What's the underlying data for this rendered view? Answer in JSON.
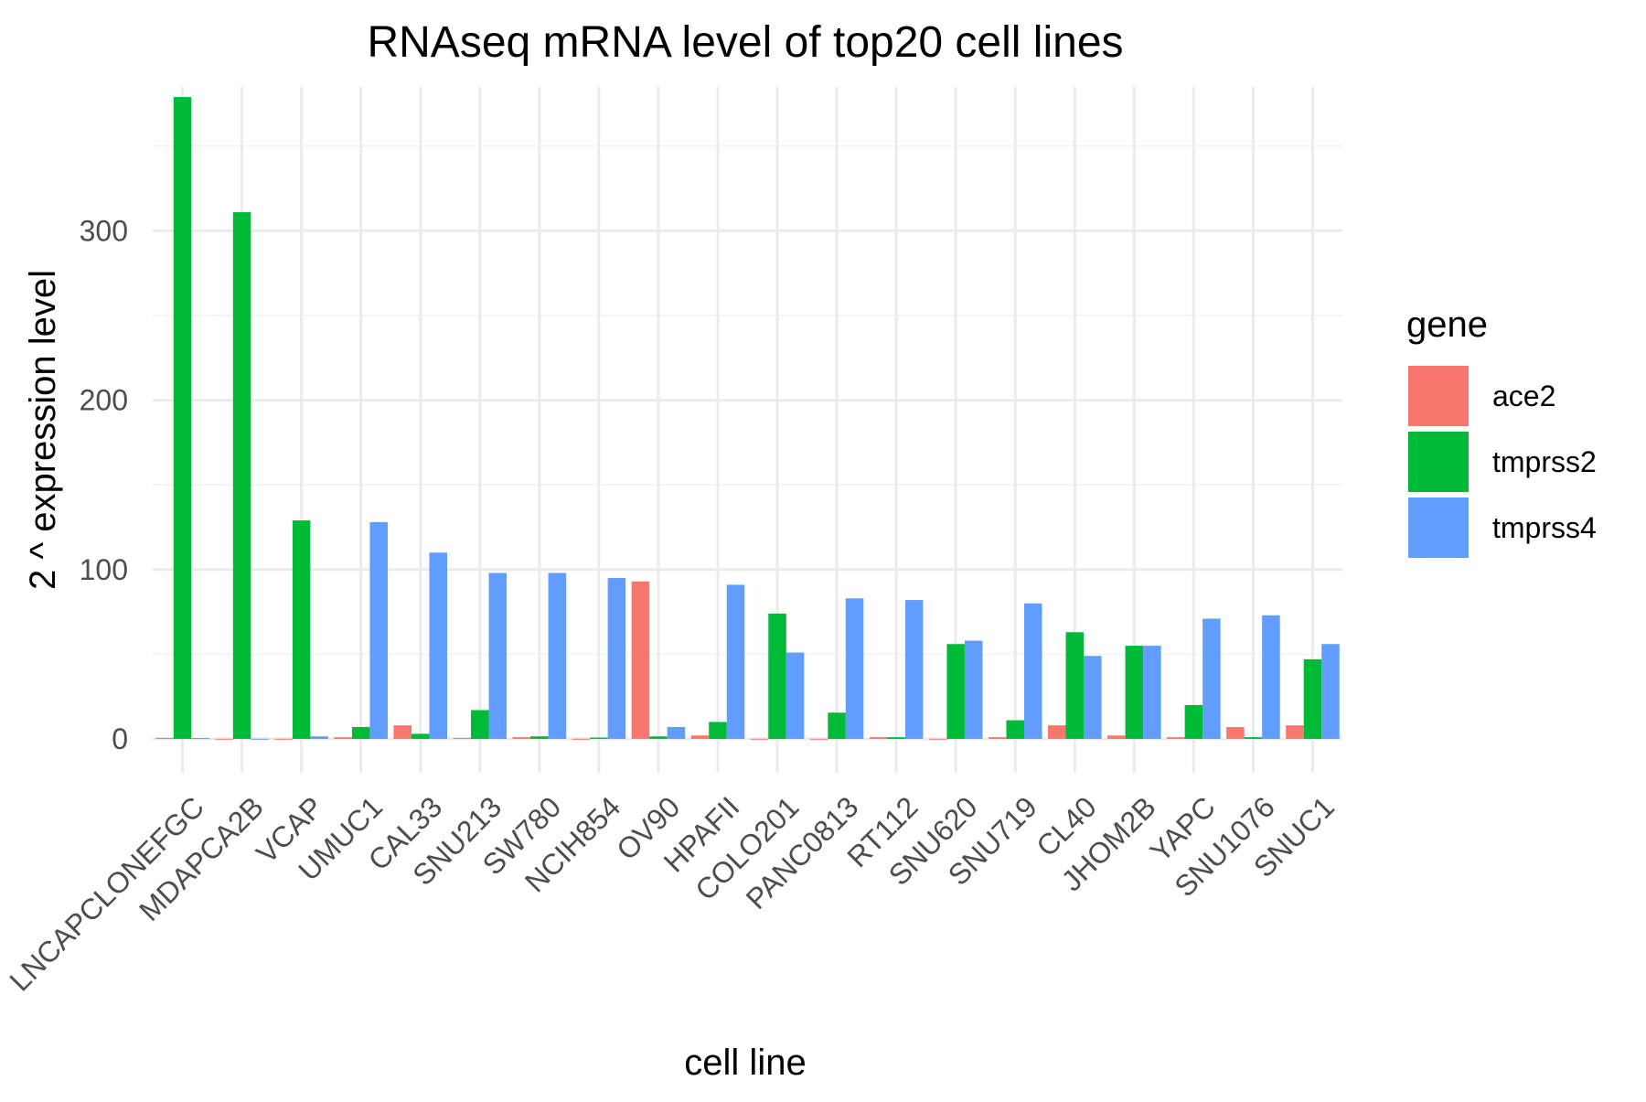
{
  "chart_data": {
    "type": "bar",
    "title": "RNAseq mRNA level of top20 cell lines",
    "xlabel": "cell line",
    "ylabel": "2 ^ expression level",
    "ylim": [
      -20,
      385
    ],
    "yticks": [
      0,
      100,
      200,
      300
    ],
    "grid": true,
    "legend": {
      "title": "gene",
      "position": "right"
    },
    "categories": [
      "LNCAPCLONEFGC",
      "MDAPCA2B",
      "VCAP",
      "UMUC1",
      "CAL33",
      "SNU213",
      "SW780",
      "NCIH854",
      "OV90",
      "HPAFII",
      "COLO201",
      "PANC0813",
      "RT112",
      "SNU620",
      "SNU719",
      "CL40",
      "JHOM2B",
      "YAPC",
      "SNU1076",
      "SNUC1"
    ],
    "series": [
      {
        "name": "ace2",
        "color": "#F8766D",
        "values": [
          0.6,
          0.1,
          0.1,
          1.0,
          8.0,
          0.6,
          1.0,
          0.1,
          93.0,
          2.0,
          0.1,
          0.1,
          1.0,
          0.1,
          1.0,
          8.0,
          2.0,
          1.0,
          7.0,
          8.0
        ]
      },
      {
        "name": "tmprss2",
        "color": "#00BA38",
        "values": [
          379,
          311,
          129,
          7.0,
          3.0,
          17.0,
          1.5,
          0.8,
          1.5,
          10.0,
          74.0,
          15.5,
          1.0,
          56.0,
          11.0,
          63.0,
          55.0,
          20.0,
          1.0,
          47.0
        ]
      },
      {
        "name": "tmprss4",
        "color": "#619CFF",
        "values": [
          0.5,
          0.1,
          1.5,
          128,
          110,
          98,
          98,
          95,
          7.0,
          91,
          51,
          83,
          82,
          58,
          80,
          49,
          55,
          71,
          73,
          56
        ]
      }
    ]
  }
}
